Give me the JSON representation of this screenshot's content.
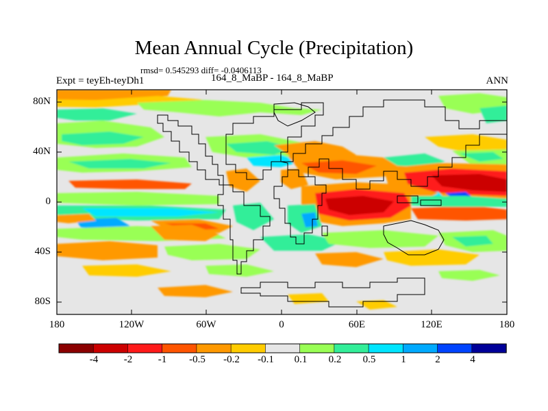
{
  "title": "Mean Annual Cycle (Precipitation)",
  "stats": "rmsd= 0.545293 diff= -0.0406113",
  "left_label": "Expt = teyEh-teyDh1",
  "center_label": "164_8_MaBP - 164_8_MaBP",
  "right_label": "ANN",
  "axes": {
    "lat_ticks": [
      "80N",
      "40N",
      "0",
      "40S",
      "80S"
    ],
    "lon_ticks": [
      "180",
      "120W",
      "60W",
      "0",
      "60E",
      "120E",
      "180"
    ]
  },
  "colorbar": {
    "labels": [
      "-4",
      "-2",
      "-1",
      "-0.5",
      "-0.2",
      "-0.1",
      "0.1",
      "0.2",
      "0.5",
      "1",
      "2",
      "4"
    ],
    "colors": [
      "#8b0000",
      "#cc0000",
      "#ff1a1a",
      "#ff5500",
      "#ff9900",
      "#ffcc00",
      "#e6e6e6",
      "#99ff55",
      "#33ee99",
      "#00e5ff",
      "#00aaff",
      "#0044ff",
      "#000099"
    ]
  },
  "colors": {
    "background": "#e6e6e6",
    "coast": "#000000"
  }
}
